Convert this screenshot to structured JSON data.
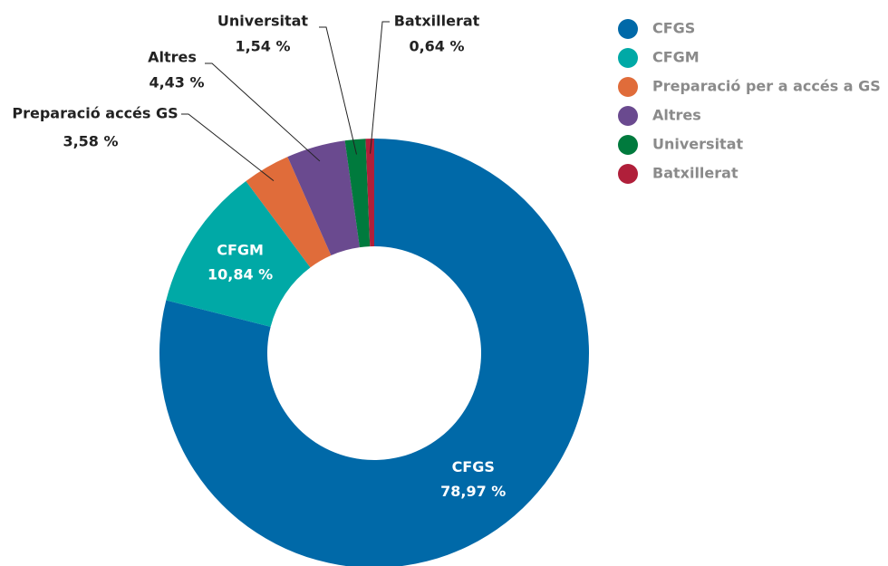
{
  "chart_data": {
    "type": "donut",
    "categories": [
      "CFGS",
      "CFGM",
      "Preparació per a accés a GS",
      "Altres",
      "Universitat",
      "Batxillerat"
    ],
    "slice_labels": [
      "CFGS",
      "CFGM",
      "Preparació accés GS",
      "Altres",
      "Universitat",
      "Batxillerat"
    ],
    "values": [
      78.97,
      10.84,
      3.58,
      4.43,
      1.54,
      0.64
    ],
    "value_labels": [
      "78,97 %",
      "10,84 %",
      "3,58 %",
      "4,43 %",
      "1,54 %",
      "0,64 %"
    ],
    "colors": [
      "#0069a8",
      "#00a9a6",
      "#e06c3a",
      "#6a4a8f",
      "#007a3d",
      "#b01f3a"
    ],
    "legend": "top-right"
  }
}
